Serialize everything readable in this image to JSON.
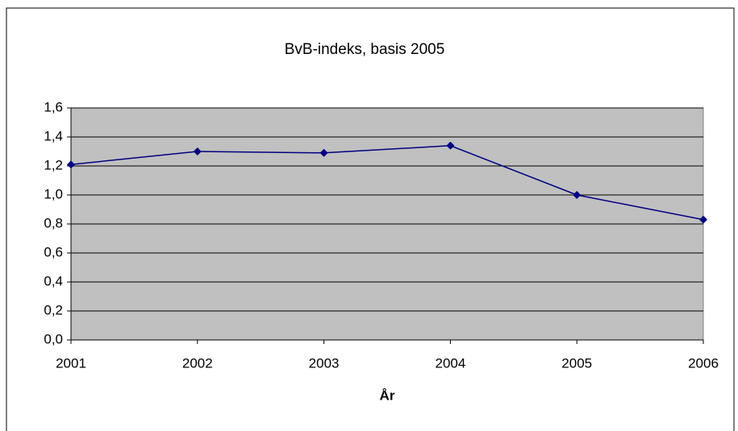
{
  "chart_data": {
    "type": "line",
    "title": "BvB-indeks, basis 2005",
    "x_label": "År",
    "categories": [
      "2001",
      "2002",
      "2003",
      "2004",
      "2005",
      "2006"
    ],
    "series": [
      {
        "name": "BvB-indeks",
        "color": "#000080",
        "values": [
          1.21,
          1.3,
          1.29,
          1.34,
          1.0,
          0.83
        ]
      }
    ],
    "ylim": [
      0,
      1.6
    ],
    "yticks": [
      {
        "value": 0,
        "label": "0,0"
      },
      {
        "value": 0.2,
        "label": "0,2"
      },
      {
        "value": 0.4,
        "label": "0,4"
      },
      {
        "value": 0.6,
        "label": "0,6"
      },
      {
        "value": 0.8,
        "label": "0,8"
      },
      {
        "value": 1.0,
        "label": "1,0"
      },
      {
        "value": 1.2,
        "label": "1,2"
      },
      {
        "value": 1.4,
        "label": "1,4"
      },
      {
        "value": 1.6,
        "label": "1,6"
      }
    ],
    "grid": true,
    "plot_background": "#c0c0c0"
  }
}
